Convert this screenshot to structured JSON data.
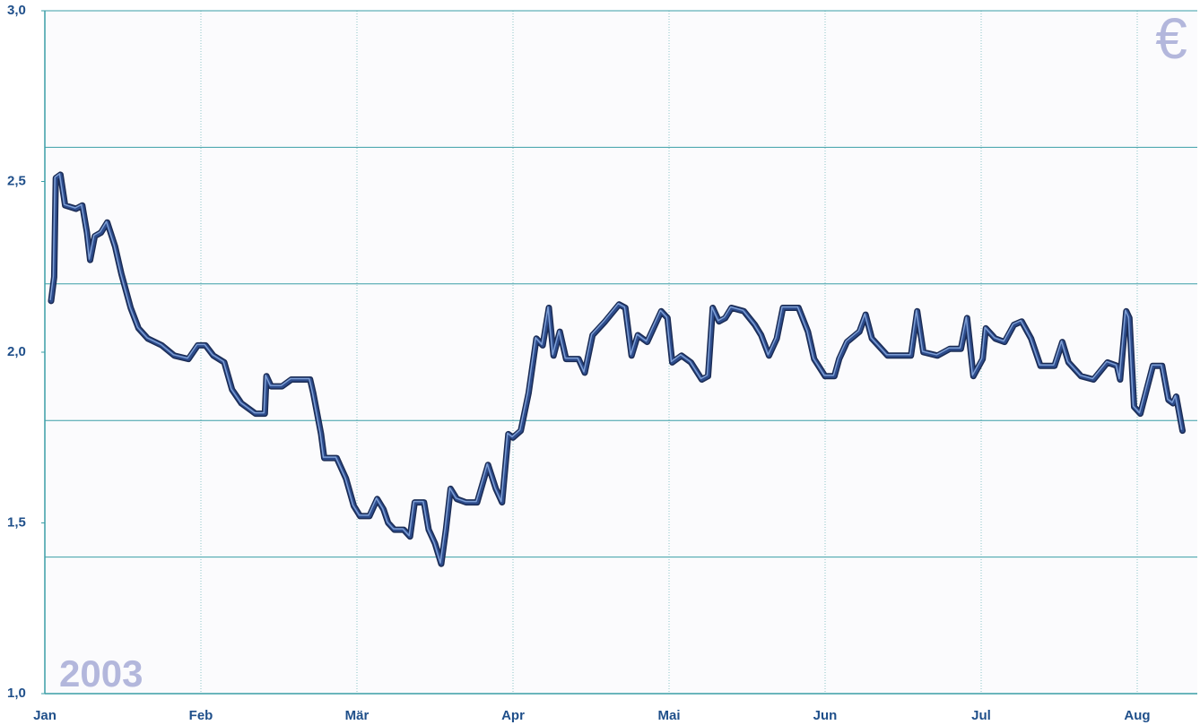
{
  "chart_data": {
    "type": "line",
    "annotations": [
      "2003",
      "€"
    ],
    "x": [
      0.04,
      0.06,
      0.07,
      0.1,
      0.13,
      0.2,
      0.24,
      0.27,
      0.29,
      0.32,
      0.36,
      0.4,
      0.45,
      0.49,
      0.55,
      0.6,
      0.66,
      0.75,
      0.83,
      0.92,
      0.98,
      1.03,
      1.08,
      1.15,
      1.2,
      1.26,
      1.35,
      1.41,
      1.42,
      1.45,
      1.52,
      1.58,
      1.7,
      1.72,
      1.77,
      1.79,
      1.87,
      1.93,
      1.98,
      2.02,
      2.08,
      2.13,
      2.17,
      2.2,
      2.24,
      2.3,
      2.34,
      2.37,
      2.43,
      2.46,
      2.5,
      2.54,
      2.57,
      2.6,
      2.64,
      2.7,
      2.77,
      2.84,
      2.89,
      2.93,
      2.97,
      3.0,
      3.05,
      3.1,
      3.15,
      3.19,
      3.23,
      3.26,
      3.3,
      3.34,
      3.42,
      3.46,
      3.51,
      3.59,
      3.68,
      3.72,
      3.76,
      3.8,
      3.86,
      3.95,
      3.99,
      4.02,
      4.08,
      4.14,
      4.21,
      4.25,
      4.28,
      4.32,
      4.36,
      4.4,
      4.48,
      4.55,
      4.59,
      4.64,
      4.69,
      4.73,
      4.83,
      4.89,
      4.93,
      5.0,
      5.06,
      5.09,
      5.14,
      5.22,
      5.26,
      5.3,
      5.34,
      5.4,
      5.55,
      5.59,
      5.63,
      5.72,
      5.8,
      5.87,
      5.91,
      5.95,
      6.01,
      6.03,
      6.09,
      6.15,
      6.21,
      6.26,
      6.32,
      6.38,
      6.47,
      6.52,
      6.56,
      6.64,
      6.72,
      6.81,
      6.87,
      6.89,
      6.93,
      6.95,
      6.98,
      7.02,
      7.1,
      7.16,
      7.2,
      7.23,
      7.25,
      7.29
    ],
    "values": [
      2.15,
      2.22,
      2.51,
      2.52,
      2.43,
      2.42,
      2.43,
      2.35,
      2.27,
      2.34,
      2.35,
      2.38,
      2.31,
      2.23,
      2.13,
      2.07,
      2.04,
      2.02,
      1.99,
      1.98,
      2.02,
      2.02,
      1.99,
      1.97,
      1.89,
      1.85,
      1.82,
      1.82,
      1.93,
      1.9,
      1.9,
      1.92,
      1.92,
      1.88,
      1.76,
      1.69,
      1.69,
      1.63,
      1.55,
      1.52,
      1.52,
      1.57,
      1.54,
      1.5,
      1.48,
      1.48,
      1.46,
      1.56,
      1.56,
      1.48,
      1.44,
      1.38,
      1.48,
      1.6,
      1.57,
      1.56,
      1.56,
      1.67,
      1.6,
      1.56,
      1.76,
      1.75,
      1.77,
      1.88,
      2.04,
      2.02,
      2.13,
      1.99,
      2.06,
      1.98,
      1.98,
      1.94,
      2.05,
      2.09,
      2.14,
      2.13,
      1.99,
      2.05,
      2.03,
      2.12,
      2.1,
      1.97,
      1.99,
      1.97,
      1.92,
      1.93,
      2.13,
      2.09,
      2.1,
      2.13,
      2.12,
      2.08,
      2.05,
      1.99,
      2.04,
      2.13,
      2.13,
      2.06,
      1.98,
      1.93,
      1.93,
      1.98,
      2.03,
      2.06,
      2.11,
      2.04,
      2.02,
      1.99,
      1.99,
      2.12,
      2.0,
      1.99,
      2.01,
      2.01,
      2.1,
      1.93,
      1.98,
      2.07,
      2.04,
      2.03,
      2.08,
      2.09,
      2.04,
      1.96,
      1.96,
      2.03,
      1.97,
      1.93,
      1.92,
      1.97,
      1.96,
      1.92,
      2.12,
      2.1,
      1.84,
      1.82,
      1.96,
      1.96,
      1.86,
      1.85,
      1.87,
      1.77
    ],
    "color": "#2d4c8c",
    "xlim": [
      0,
      7.385
    ],
    "xticks": [
      {
        "value": 0,
        "label": "Jan"
      },
      {
        "value": 1,
        "label": "Feb"
      },
      {
        "value": 2,
        "label": "Mär"
      },
      {
        "value": 3,
        "label": "Apr"
      },
      {
        "value": 4,
        "label": "Mai"
      },
      {
        "value": 5,
        "label": "Jun"
      },
      {
        "value": 6,
        "label": "Jul"
      },
      {
        "value": 7,
        "label": "Aug"
      }
    ],
    "ylim": [
      1,
      3
    ],
    "yticks": [
      {
        "value": 1,
        "label": "1,0"
      },
      {
        "value": 1.5,
        "label": "1,5"
      },
      {
        "value": 2,
        "label": "2,0"
      },
      {
        "value": 2.5,
        "label": "2,5"
      },
      {
        "value": 3,
        "label": "3,0"
      }
    ],
    "grid_lines": [
      1.4,
      1.8,
      2.2,
      2.6
    ],
    "grid": true
  }
}
